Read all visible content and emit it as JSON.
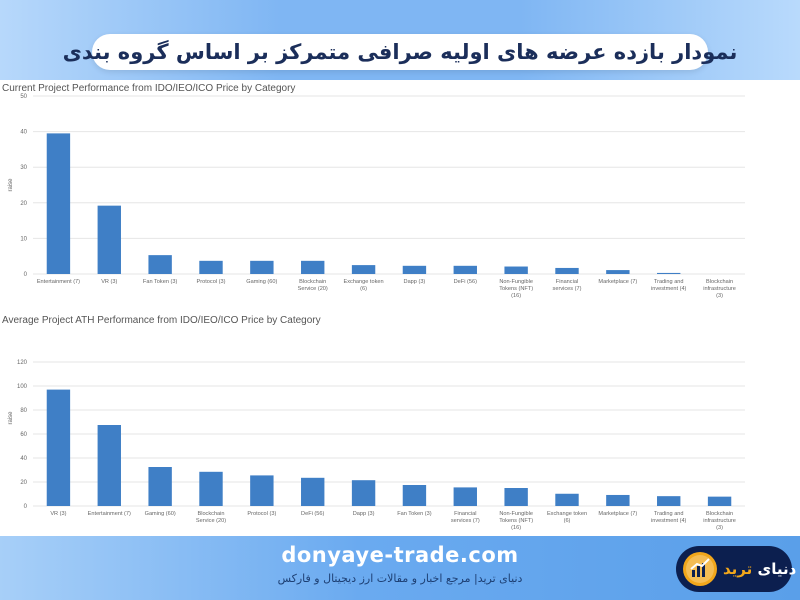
{
  "header": {
    "title": "نمودار بازده عرضه های اولیه صرافی متمرکز بر اساس گروه بندی"
  },
  "footer": {
    "site_url": "donyaye-trade.com",
    "tagline": "دنیای ترید| مرجع اخبار و مقالات ارز دیجیتال و فارکس",
    "logo_text_part1": "دنیای",
    "logo_text_part2": "ترید"
  },
  "colors": {
    "bar": "#3f7fc6",
    "grid": "#e6e6e6",
    "axis_text": "#666666",
    "header_band": "#7fb6f3",
    "footer_band": "#6aaaf0",
    "logo_bg": "#0c1f4f",
    "logo_accent": "#f2a71b"
  },
  "chart_data": [
    {
      "type": "bar",
      "title": "Current Project Performance from IDO/IEO/ICO Price by Category",
      "ylabel": "raise",
      "xlabel": "",
      "ylim": [
        0,
        50
      ],
      "yticks": [
        0,
        10,
        20,
        30,
        40,
        50
      ],
      "grid": true,
      "categories": [
        [
          "Entertainment (7)"
        ],
        [
          "VR (3)"
        ],
        [
          "Fan Token (3)"
        ],
        [
          "Protocol (3)"
        ],
        [
          "Gaming (60)"
        ],
        [
          "Blockchain",
          "Service (20)"
        ],
        [
          "Exchange token",
          "(6)"
        ],
        [
          "Dapp (3)"
        ],
        [
          "DeFi (56)"
        ],
        [
          "Non-Fungible",
          "Tokens (NFT)",
          "(16)"
        ],
        [
          "Financial",
          "services (7)"
        ],
        [
          "Marketplace (7)"
        ],
        [
          "Trading and",
          "investment (4)"
        ],
        [
          "Blockchain",
          "infrastructure",
          "(3)"
        ]
      ],
      "values": [
        39.5,
        19.2,
        5.3,
        3.7,
        3.7,
        3.7,
        2.5,
        2.3,
        2.3,
        2.1,
        1.7,
        1.1,
        0.3,
        0.0
      ]
    },
    {
      "type": "bar",
      "title": "Average Project ATH Performance from IDO/IEO/ICO Price by Category",
      "ylabel": "raise",
      "xlabel": "",
      "ylim": [
        0,
        120
      ],
      "yticks": [
        0,
        20,
        40,
        60,
        80,
        100,
        120
      ],
      "grid": true,
      "categories": [
        [
          "VR (3)"
        ],
        [
          "Entertainment (7)"
        ],
        [
          "Gaming (60)"
        ],
        [
          "Blockchain",
          "Service (20)"
        ],
        [
          "Protocol (3)"
        ],
        [
          "DeFi (56)"
        ],
        [
          "Dapp (3)"
        ],
        [
          "Fan Token (3)"
        ],
        [
          "Financial",
          "services (7)"
        ],
        [
          "Non-Fungible",
          "Tokens (NFT)",
          "(16)"
        ],
        [
          "Exchange token",
          "(6)"
        ],
        [
          "Marketplace (7)"
        ],
        [
          "Trading and",
          "investment (4)"
        ],
        [
          "Blockchain",
          "infrastructure",
          "(3)"
        ]
      ],
      "values": [
        97,
        67.5,
        32.5,
        28.5,
        25.5,
        23.5,
        21.5,
        17.5,
        15.5,
        15,
        10.2,
        9.2,
        8.2,
        7.8
      ]
    }
  ]
}
